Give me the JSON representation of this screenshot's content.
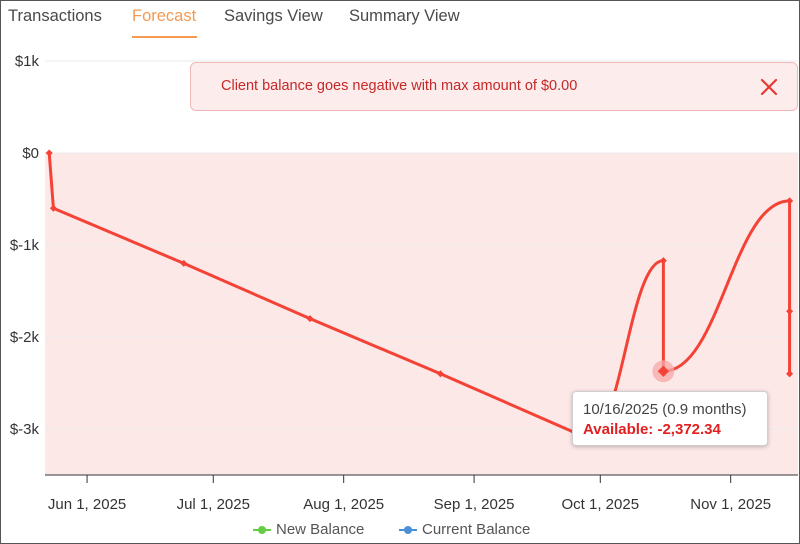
{
  "tabs": [
    {
      "label": "Transactions",
      "active": false
    },
    {
      "label": "Forecast",
      "active": true
    },
    {
      "label": "Savings View",
      "active": false
    },
    {
      "label": "Summary View",
      "active": false
    }
  ],
  "alert": {
    "message": "Client balance goes negative with max amount of $0.00",
    "close_icon": "close-icon"
  },
  "tooltip": {
    "date_line": "10/16/2025 (0.9 months)",
    "value_line": "Available: -2,372.34"
  },
  "legend": [
    {
      "label": "New Balance",
      "color": "#66cc44"
    },
    {
      "label": "Current Balance",
      "color": "#4a90d9"
    }
  ],
  "colors": {
    "line": "#f44336",
    "negative_area": "#fde8e8",
    "accent": "#f39a55"
  },
  "chart_data": {
    "type": "line",
    "title": "",
    "xlabel": "",
    "ylabel": "",
    "y_ticks": [
      {
        "value": 1000,
        "label": "$1k"
      },
      {
        "value": 0,
        "label": "$0"
      },
      {
        "value": -1000,
        "label": "$-1k"
      },
      {
        "value": -2000,
        "label": "$-2k"
      },
      {
        "value": -3000,
        "label": "$-3k"
      }
    ],
    "x_ticks": [
      {
        "date": "2025-06-01",
        "label": "Jun 1, 2025"
      },
      {
        "date": "2025-07-01",
        "label": "Jul 1, 2025"
      },
      {
        "date": "2025-08-01",
        "label": "Aug 1, 2025"
      },
      {
        "date": "2025-09-01",
        "label": "Sep 1, 2025"
      },
      {
        "date": "2025-10-01",
        "label": "Oct 1, 2025"
      },
      {
        "date": "2025-11-01",
        "label": "Nov 1, 2025"
      }
    ],
    "xlim": [
      "2025-05-22",
      "2025-11-17"
    ],
    "ylim": [
      -3500,
      1000
    ],
    "grid": true,
    "legend_position": "bottom",
    "negative_region_shaded": true,
    "series": [
      {
        "name": "Available",
        "points": [
          {
            "date": "2025-05-23",
            "value": 0,
            "marker": true,
            "curve": "linear"
          },
          {
            "date": "2025-05-24",
            "value": -600,
            "marker": true,
            "curve": "linear"
          },
          {
            "date": "2025-06-24",
            "value": -1200,
            "marker": true,
            "curve": "linear"
          },
          {
            "date": "2025-07-24",
            "value": -1800,
            "marker": true,
            "curve": "linear"
          },
          {
            "date": "2025-08-24",
            "value": -2400,
            "marker": true,
            "curve": "linear"
          },
          {
            "date": "2025-09-28",
            "value": -3100,
            "marker": false,
            "curve": "linear"
          },
          {
            "date": "2025-10-16",
            "value": -1170,
            "marker": true,
            "curve": "smooth"
          },
          {
            "date": "2025-10-16",
            "value": -2372.34,
            "marker": true,
            "curve": "linear",
            "highlight": true
          },
          {
            "date": "2025-11-15",
            "value": -520,
            "marker": true,
            "curve": "smooth"
          },
          {
            "date": "2025-11-15",
            "value": -1720,
            "marker": true,
            "curve": "linear"
          },
          {
            "date": "2025-11-15",
            "value": -2400,
            "marker": true,
            "curve": "linear"
          }
        ]
      }
    ]
  }
}
